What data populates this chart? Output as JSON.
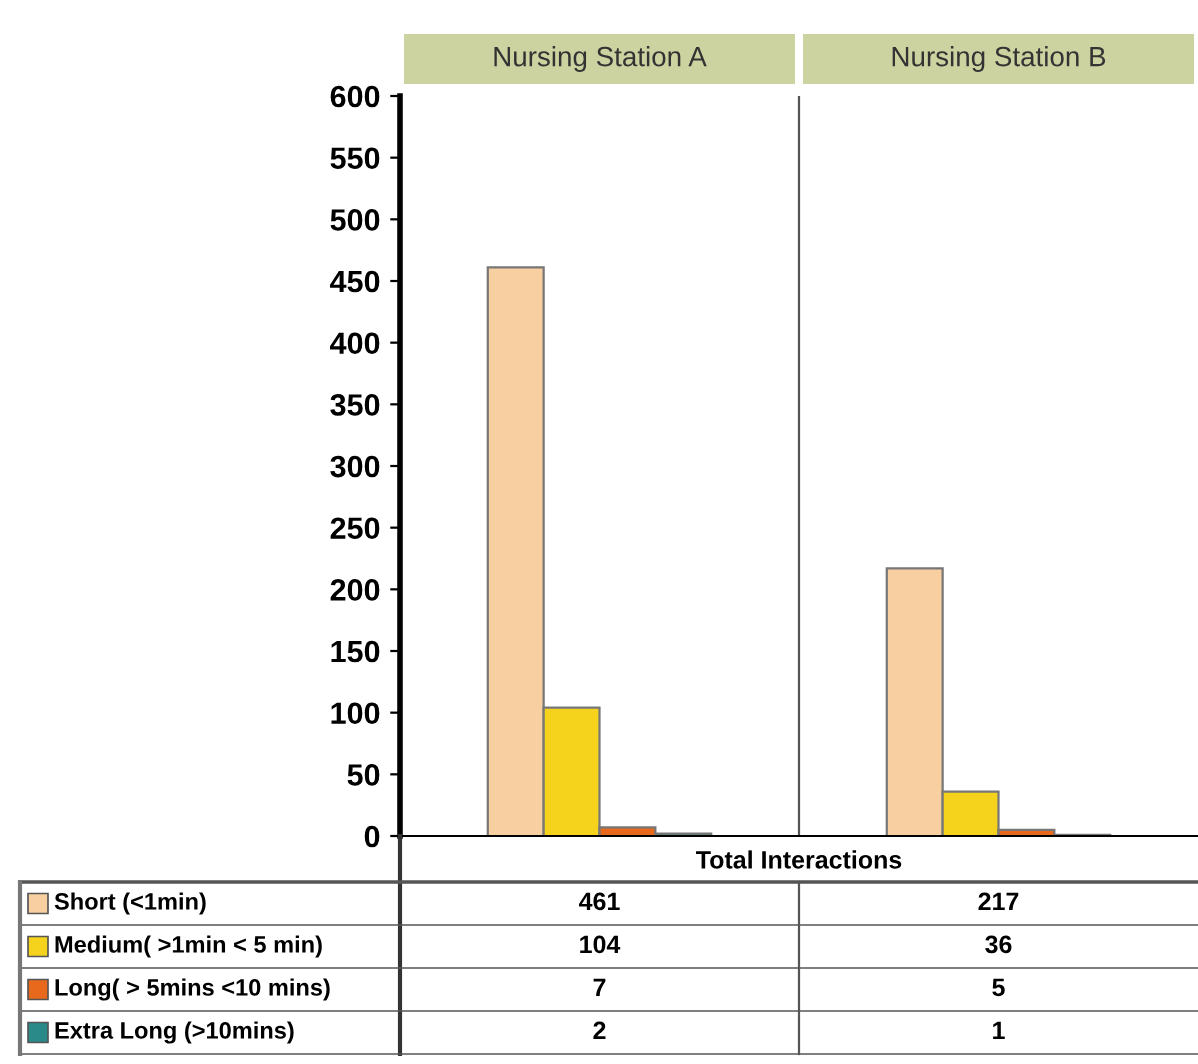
{
  "chart_data": {
    "type": "bar",
    "categories": [
      "Nursing Station A",
      "Nursing Station B"
    ],
    "xlabel": "Total Interactions",
    "series": [
      {
        "name": "Short (<1min)",
        "color": "#f8cfa0",
        "values": [
          461,
          217
        ]
      },
      {
        "name": "Medium( >1min < 5 min)",
        "color": "#f5d21c",
        "values": [
          104,
          36
        ]
      },
      {
        "name": "Long( > 5mins <10 mins)",
        "color": "#e8681c",
        "values": [
          7,
          5
        ]
      },
      {
        "name": "Extra Long (>10mins)",
        "color": "#2a8a8a",
        "values": [
          2,
          1
        ]
      }
    ],
    "ylim": [
      0,
      600
    ],
    "yticks": [
      0,
      50,
      100,
      150,
      200,
      250,
      300,
      350,
      400,
      450,
      500,
      550,
      600
    ],
    "grid": false,
    "legend": "bottom left",
    "data_labels": true
  }
}
